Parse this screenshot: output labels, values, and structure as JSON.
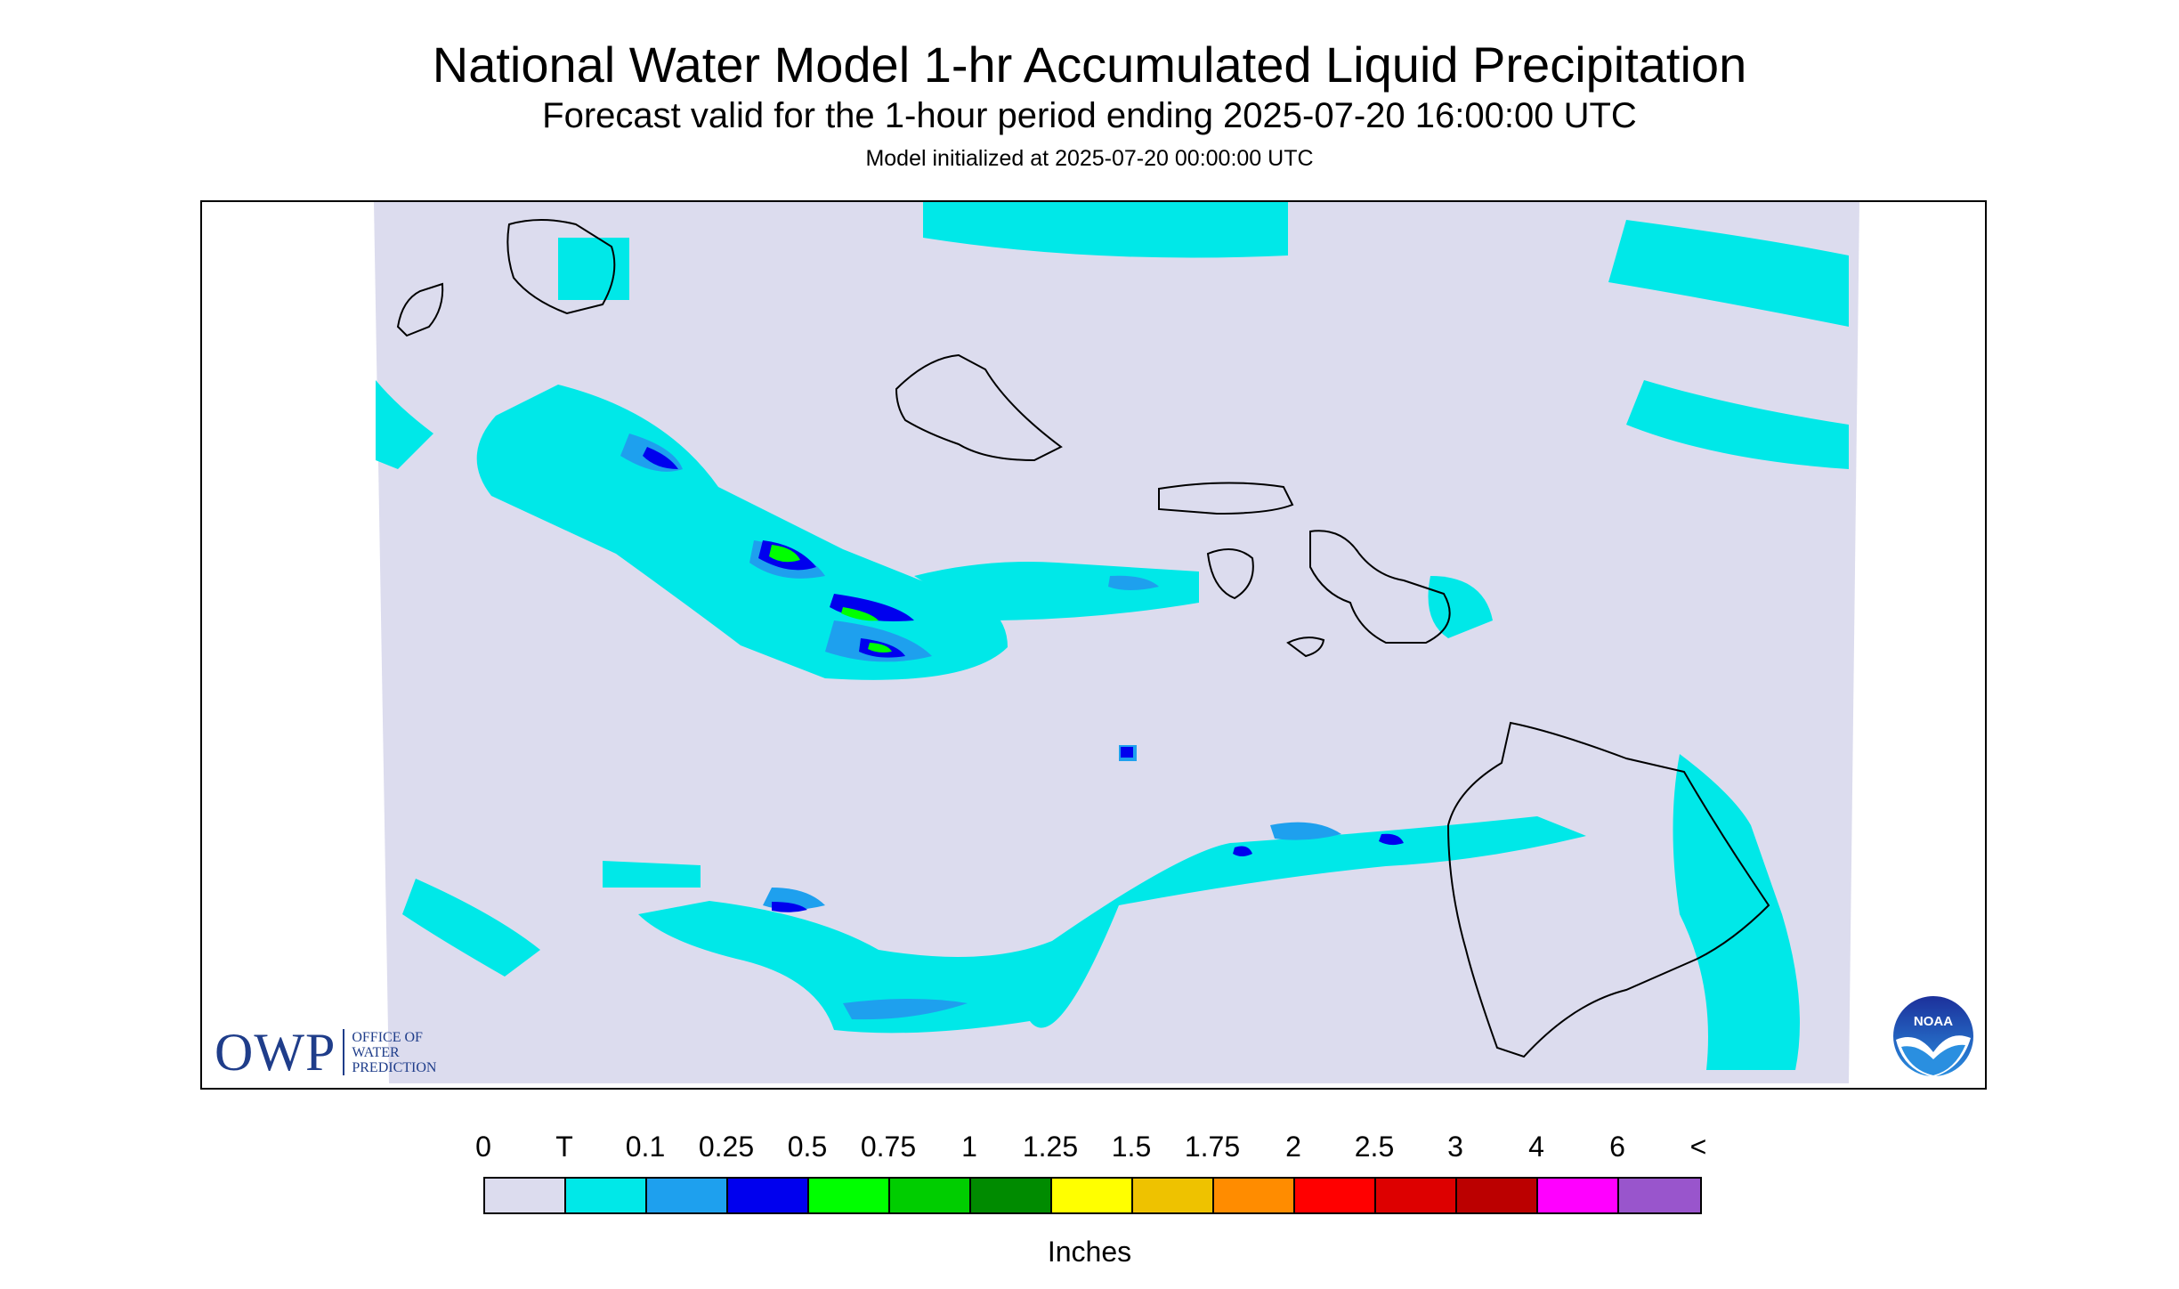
{
  "header": {
    "title": "National Water Model 1-hr Accumulated Liquid Precipitation",
    "subtitle": "Forecast valid for the 1-hour period ending 2025-07-20 16:00:00 UTC",
    "init": "Model initialized at 2025-07-20 00:00:00 UTC"
  },
  "map": {
    "background_color": "#dcdcee",
    "region": "Hawaiian Islands",
    "islands": [
      "Niihau",
      "Kauai",
      "Oahu",
      "Molokai",
      "Lanai",
      "Maui",
      "Kahoolawe",
      "Hawaii"
    ]
  },
  "logos": {
    "owp": {
      "mark": "OWP",
      "line1": "OFFICE OF",
      "line2": "WATER",
      "line3": "PREDICTION"
    },
    "noaa": {
      "mark": "NOAA"
    }
  },
  "legend": {
    "labels": [
      "0",
      "T",
      "0.1",
      "0.25",
      "0.5",
      "0.75",
      "1",
      "1.25",
      "1.5",
      "1.75",
      "2",
      "2.5",
      "3",
      "4",
      "6",
      "<"
    ],
    "colors": [
      "#dcdcee",
      "#00e8e8",
      "#1ea0ee",
      "#0000ee",
      "#00ff00",
      "#00cd00",
      "#008b00",
      "#ffff00",
      "#eec200",
      "#ff8c00",
      "#ff0000",
      "#dd0000",
      "#bb0000",
      "#ff00ff",
      "#9955cc"
    ],
    "units": "Inches"
  }
}
